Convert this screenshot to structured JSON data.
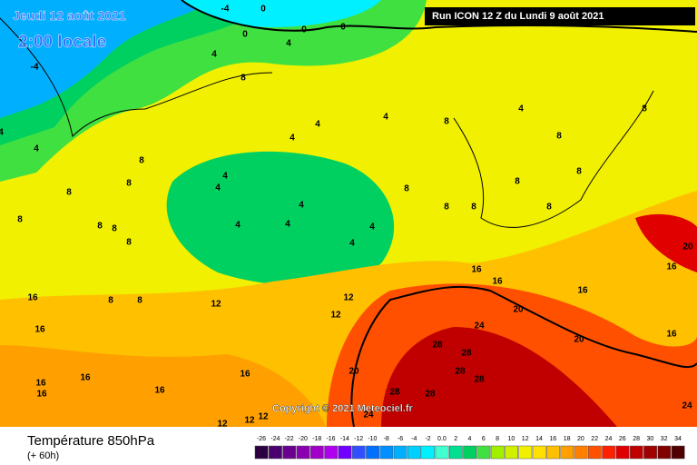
{
  "header": {
    "date": "Jeudi 12 août 2021",
    "time": "2:00 locale",
    "run": "Run ICON 12 Z du Lundi 9 août 2021"
  },
  "copyright": "Copyright © 2021 Meteociel.fr",
  "footer": {
    "title": "Température 850hPa",
    "lead": "(+ 60h)"
  },
  "scale": {
    "ticks": [
      "-26",
      "-24",
      "-22",
      "-20",
      "-18",
      "-16",
      "-14",
      "-12",
      "-10",
      "-8",
      "-6",
      "-4",
      "-2",
      "0.0",
      "2",
      "4",
      "6",
      "8",
      "10",
      "12",
      "14",
      "16",
      "18",
      "20",
      "22",
      "24",
      "26",
      "28",
      "30",
      "32",
      "34"
    ],
    "colors": [
      "#2a0040",
      "#4b0070",
      "#6a0090",
      "#8a00b0",
      "#a000c8",
      "#b000f0",
      "#7000ff",
      "#3050ff",
      "#0070ff",
      "#0090ff",
      "#00b0ff",
      "#00d0ff",
      "#00f0ff",
      "#40ffd0",
      "#00e090",
      "#00d060",
      "#40e040",
      "#a0f000",
      "#d0f000",
      "#f0f000",
      "#ffe000",
      "#ffc000",
      "#ffa000",
      "#ff8000",
      "#ff5000",
      "#ff2000",
      "#e00000",
      "#c00000",
      "#a00000",
      "#800000",
      "#500000"
    ]
  },
  "contour_labels": [
    "-4",
    "0",
    "0",
    "4",
    "0",
    "0",
    "-4",
    "4",
    "8",
    "4",
    "4",
    "8",
    "8",
    "8",
    "4",
    "4",
    "4",
    "4",
    "4",
    "8",
    "4",
    "8",
    "8",
    "8",
    "8",
    "4",
    "4",
    "4",
    "4",
    "4",
    "8",
    "8",
    "8",
    "8",
    "8",
    "8",
    "8",
    "8",
    "8",
    "8",
    "12",
    "12",
    "12",
    "16",
    "16",
    "16",
    "16",
    "20",
    "20",
    "20",
    "16",
    "16",
    "16",
    "16",
    "16",
    "16",
    "16",
    "16",
    "20",
    "24",
    "28",
    "28",
    "28",
    "28",
    "28",
    "28",
    "24",
    "12",
    "12",
    "12",
    "24"
  ]
}
